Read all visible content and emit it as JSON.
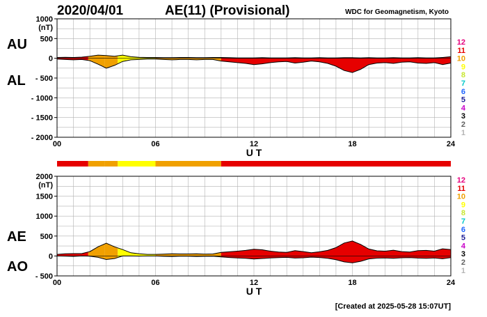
{
  "header": {
    "date": "2020/04/01",
    "title": "AE(11) (Provisional)",
    "source": "WDC for Geomagnetism, Kyoto"
  },
  "footer": {
    "created": "[Created at 2025-05-28 15:07UT]"
  },
  "station_count_scale": {
    "labels": [
      "12",
      "11",
      "10",
      "9",
      "8",
      "7",
      "6",
      "5",
      "4",
      "3",
      "2",
      "1"
    ],
    "colors": [
      "#e6007e",
      "#e60000",
      "#f0a000",
      "#ffff00",
      "#c8e632",
      "#00c8c8",
      "#1e64ff",
      "#1e1e96",
      "#c800c8",
      "#000000",
      "#606060",
      "#b4b4b4"
    ]
  },
  "chart_data": [
    {
      "type": "area",
      "name": "AU/AL",
      "labels_left": [
        "AU",
        "AL"
      ],
      "unit": "(nT)",
      "xlabel": "U T",
      "xlim": [
        0,
        24
      ],
      "x_ticks": [
        0,
        6,
        12,
        18,
        24
      ],
      "x_tick_labels": [
        "00",
        "06",
        "12",
        "18",
        "24"
      ],
      "ylim": [
        -2000,
        1000
      ],
      "y_ticks": [
        1000,
        500,
        0,
        -500,
        -1000,
        -1500,
        -2000
      ],
      "y_tick_labels": [
        "1000",
        "500",
        "0",
        "- 500",
        "- 1000",
        "- 1500",
        "- 2000"
      ],
      "grid": true,
      "series": [
        {
          "name": "AU",
          "x": [
            0,
            0.5,
            1,
            1.5,
            2,
            2.5,
            3,
            3.5,
            4,
            4.5,
            5,
            5.5,
            6,
            6.5,
            7,
            7.5,
            8,
            8.5,
            9,
            9.5,
            10,
            10.5,
            11,
            11.5,
            12,
            12.5,
            13,
            13.5,
            14,
            14.5,
            15,
            15.5,
            16,
            16.5,
            17,
            17.5,
            18,
            18.5,
            19,
            19.5,
            20,
            20.5,
            21,
            21.5,
            22,
            22.5,
            23,
            23.5,
            24
          ],
          "y": [
            20,
            25,
            20,
            30,
            50,
            80,
            70,
            50,
            80,
            40,
            25,
            20,
            20,
            15,
            15,
            20,
            20,
            15,
            15,
            20,
            20,
            15,
            10,
            10,
            10,
            15,
            10,
            10,
            10,
            15,
            10,
            10,
            15,
            10,
            10,
            15,
            15,
            10,
            15,
            10,
            10,
            15,
            10,
            10,
            15,
            10,
            10,
            20,
            40
          ]
        },
        {
          "name": "AL",
          "x": [
            0,
            0.5,
            1,
            1.5,
            2,
            2.5,
            3,
            3.5,
            4,
            4.5,
            5,
            5.5,
            6,
            6.5,
            7,
            7.5,
            8,
            8.5,
            9,
            9.5,
            10,
            10.5,
            11,
            11.5,
            12,
            12.5,
            13,
            13.5,
            14,
            14.5,
            15,
            15.5,
            16,
            16.5,
            17,
            17.5,
            18,
            18.5,
            19,
            19.5,
            20,
            20.5,
            21,
            21.5,
            22,
            22.5,
            23,
            23.5,
            24
          ],
          "y": [
            -20,
            -30,
            -40,
            -30,
            -60,
            -150,
            -250,
            -180,
            -80,
            -40,
            -30,
            -20,
            -20,
            -30,
            -40,
            -30,
            -30,
            -40,
            -30,
            -30,
            -70,
            -90,
            -110,
            -130,
            -160,
            -140,
            -110,
            -90,
            -80,
            -120,
            -100,
            -70,
            -90,
            -130,
            -200,
            -310,
            -360,
            -280,
            -160,
            -120,
            -110,
            -130,
            -100,
            -90,
            -120,
            -130,
            -110,
            -160,
            -120
          ]
        }
      ],
      "station_count": [
        {
          "from": 0,
          "to": 1.9,
          "stations": 11
        },
        {
          "from": 1.9,
          "to": 2.9,
          "stations": 10
        },
        {
          "from": 2.9,
          "to": 3.7,
          "stations": 10
        },
        {
          "from": 3.7,
          "to": 6.0,
          "stations": 9
        },
        {
          "from": 6.0,
          "to": 10.0,
          "stations": 10
        },
        {
          "from": 10.0,
          "to": 24,
          "stations": 11
        }
      ]
    },
    {
      "type": "area",
      "name": "AE/AO",
      "labels_left": [
        "AE",
        "AO"
      ],
      "unit": "(nT)",
      "xlabel": "U T",
      "xlim": [
        0,
        24
      ],
      "x_ticks": [
        0,
        6,
        12,
        18,
        24
      ],
      "x_tick_labels": [
        "00",
        "06",
        "12",
        "18",
        "24"
      ],
      "ylim": [
        -500,
        2000
      ],
      "y_ticks": [
        2000,
        1500,
        1000,
        500,
        0,
        -500
      ],
      "y_tick_labels": [
        "2000",
        "1500",
        "1000",
        "500",
        "0",
        "- 500"
      ],
      "grid": true,
      "series": [
        {
          "name": "AE",
          "x": [
            0,
            0.5,
            1,
            1.5,
            2,
            2.5,
            3,
            3.5,
            4,
            4.5,
            5,
            5.5,
            6,
            6.5,
            7,
            7.5,
            8,
            8.5,
            9,
            9.5,
            10,
            10.5,
            11,
            11.5,
            12,
            12.5,
            13,
            13.5,
            14,
            14.5,
            15,
            15.5,
            16,
            16.5,
            17,
            17.5,
            18,
            18.5,
            19,
            19.5,
            20,
            20.5,
            21,
            21.5,
            22,
            22.5,
            23,
            23.5,
            24
          ],
          "y": [
            40,
            55,
            60,
            60,
            110,
            230,
            320,
            230,
            160,
            80,
            55,
            40,
            40,
            45,
            55,
            50,
            50,
            55,
            45,
            50,
            90,
            105,
            120,
            140,
            170,
            155,
            120,
            100,
            90,
            135,
            110,
            80,
            105,
            140,
            210,
            325,
            375,
            290,
            175,
            130,
            120,
            145,
            110,
            100,
            135,
            140,
            120,
            180,
            160
          ]
        },
        {
          "name": "AO",
          "x": [
            0,
            0.5,
            1,
            1.5,
            2,
            2.5,
            3,
            3.5,
            4,
            4.5,
            5,
            5.5,
            6,
            6.5,
            7,
            7.5,
            8,
            8.5,
            9,
            9.5,
            10,
            10.5,
            11,
            11.5,
            12,
            12.5,
            13,
            13.5,
            14,
            14.5,
            15,
            15.5,
            16,
            16.5,
            17,
            17.5,
            18,
            18.5,
            19,
            19.5,
            20,
            20.5,
            21,
            21.5,
            22,
            22.5,
            23,
            23.5,
            24
          ],
          "y": [
            0,
            -3,
            -10,
            0,
            -5,
            -35,
            -90,
            -65,
            0,
            0,
            -3,
            0,
            0,
            -8,
            -13,
            -5,
            -5,
            -13,
            -8,
            -5,
            -25,
            -38,
            -50,
            -60,
            -75,
            -63,
            -50,
            -40,
            -35,
            -53,
            -45,
            -30,
            -38,
            -60,
            -95,
            -148,
            -173,
            -135,
            -73,
            -55,
            -50,
            -58,
            -45,
            -40,
            -53,
            -60,
            -50,
            -70,
            -40
          ]
        }
      ],
      "station_count": [
        {
          "from": 0,
          "to": 1.9,
          "stations": 11
        },
        {
          "from": 1.9,
          "to": 2.9,
          "stations": 10
        },
        {
          "from": 2.9,
          "to": 3.7,
          "stations": 10
        },
        {
          "from": 3.7,
          "to": 6.0,
          "stations": 9
        },
        {
          "from": 6.0,
          "to": 10.0,
          "stations": 10
        },
        {
          "from": 10.0,
          "to": 24,
          "stations": 11
        }
      ]
    }
  ]
}
